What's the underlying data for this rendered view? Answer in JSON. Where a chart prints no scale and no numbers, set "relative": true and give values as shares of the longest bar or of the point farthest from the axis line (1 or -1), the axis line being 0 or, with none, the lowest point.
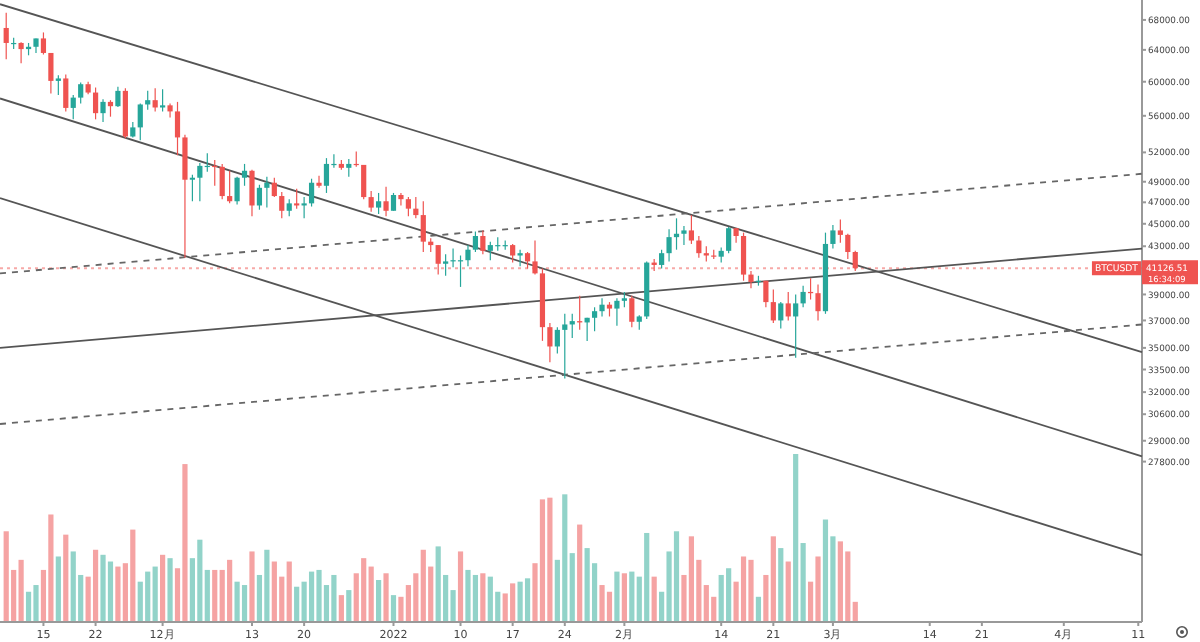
{
  "chart_data": [
    {
      "type": "candlestick",
      "log": "y",
      "x": [
        "2021-11-10",
        "2021-11-11",
        "2021-11-12",
        "2021-11-13",
        "2021-11-14",
        "2021-11-15",
        "2021-11-16",
        "2021-11-17",
        "2021-11-18",
        "2021-11-19",
        "2021-11-20",
        "2021-11-21",
        "2021-11-22",
        "2021-11-23",
        "2021-11-24",
        "2021-11-25",
        "2021-11-26",
        "2021-11-27",
        "2021-11-28",
        "2021-11-29",
        "2021-11-30",
        "2021-12-01",
        "2021-12-02",
        "2021-12-03",
        "2021-12-04",
        "2021-12-05",
        "2021-12-06",
        "2021-12-07",
        "2021-12-08",
        "2021-12-09",
        "2021-12-10",
        "2021-12-11",
        "2021-12-12",
        "2021-12-13",
        "2021-12-14",
        "2021-12-15",
        "2021-12-16",
        "2021-12-17",
        "2021-12-18",
        "2021-12-19",
        "2021-12-20",
        "2021-12-21",
        "2021-12-22",
        "2021-12-23",
        "2021-12-24",
        "2021-12-25",
        "2021-12-26",
        "2021-12-27",
        "2021-12-28",
        "2021-12-29",
        "2021-12-30",
        "2021-12-31",
        "2022-01-01",
        "2022-01-02",
        "2022-01-03",
        "2022-01-04",
        "2022-01-05",
        "2022-01-06",
        "2022-01-07",
        "2022-01-08",
        "2022-01-09",
        "2022-01-10",
        "2022-01-11",
        "2022-01-12",
        "2022-01-13",
        "2022-01-14",
        "2022-01-15",
        "2022-01-16",
        "2022-01-17",
        "2022-01-18",
        "2022-01-19",
        "2022-01-20",
        "2022-01-21",
        "2022-01-22",
        "2022-01-23",
        "2022-01-24",
        "2022-01-25",
        "2022-01-26",
        "2022-01-27",
        "2022-01-28",
        "2022-01-29",
        "2022-01-30",
        "2022-01-31",
        "2022-02-01",
        "2022-02-02",
        "2022-02-03",
        "2022-02-04",
        "2022-02-05",
        "2022-02-06",
        "2022-02-07",
        "2022-02-08",
        "2022-02-09",
        "2022-02-10",
        "2022-02-11",
        "2022-02-12",
        "2022-02-13",
        "2022-02-14",
        "2022-02-15",
        "2022-02-16",
        "2022-02-17",
        "2022-02-18",
        "2022-02-19",
        "2022-02-20",
        "2022-02-21",
        "2022-02-22",
        "2022-02-23",
        "2022-02-24",
        "2022-02-25",
        "2022-02-26",
        "2022-02-27",
        "2022-02-28",
        "2022-03-01",
        "2022-03-02",
        "2022-03-03",
        "2022-03-04"
      ],
      "ohlc": [
        [
          66900,
          69000,
          62800,
          64900
        ],
        [
          64900,
          65600,
          64100,
          64900
        ],
        [
          64900,
          65000,
          62300,
          64100
        ],
        [
          64100,
          64900,
          63300,
          64400
        ],
        [
          64400,
          65500,
          63600,
          65500
        ],
        [
          65500,
          66300,
          63400,
          63600
        ],
        [
          63600,
          63600,
          58600,
          60100
        ],
        [
          60100,
          60800,
          58400,
          60400
        ],
        [
          60400,
          60900,
          56500,
          56900
        ],
        [
          56900,
          58400,
          55600,
          58100
        ],
        [
          58100,
          59900,
          57400,
          59700
        ],
        [
          59700,
          60000,
          58500,
          58700
        ],
        [
          58700,
          59300,
          55600,
          56300
        ],
        [
          56300,
          57900,
          55300,
          57600
        ],
        [
          57600,
          57800,
          55900,
          57100
        ],
        [
          57100,
          59400,
          57000,
          58900
        ],
        [
          58900,
          59200,
          53500,
          53700
        ],
        [
          53700,
          55300,
          53600,
          54700
        ],
        [
          54700,
          57400,
          53300,
          57300
        ],
        [
          57300,
          58900,
          56700,
          57800
        ],
        [
          57800,
          59200,
          56500,
          56950
        ],
        [
          56950,
          59100,
          56500,
          57200
        ],
        [
          57200,
          57400,
          55800,
          56500
        ],
        [
          56500,
          57600,
          51700,
          53600
        ],
        [
          53600,
          53900,
          42000,
          49200
        ],
        [
          49200,
          49700,
          47100,
          49400
        ],
        [
          49400,
          50900,
          47100,
          50600
        ],
        [
          50600,
          51900,
          50000,
          50600
        ],
        [
          50600,
          51200,
          48600,
          50500
        ],
        [
          50500,
          50800,
          47300,
          47600
        ],
        [
          47600,
          50100,
          46900,
          47100
        ],
        [
          47100,
          49500,
          46800,
          49400
        ],
        [
          49400,
          50800,
          48600,
          50100
        ],
        [
          50100,
          50200,
          45700,
          46700
        ],
        [
          46700,
          48700,
          46300,
          48400
        ],
        [
          48400,
          49500,
          46500,
          48900
        ],
        [
          48900,
          49400,
          47500,
          47600
        ],
        [
          47600,
          48000,
          45500,
          46200
        ],
        [
          46200,
          47300,
          45700,
          46900
        ],
        [
          46900,
          48300,
          46400,
          46700
        ],
        [
          46700,
          47500,
          45500,
          46900
        ],
        [
          46900,
          49300,
          46600,
          48900
        ],
        [
          48900,
          49600,
          48400,
          48600
        ],
        [
          48600,
          51400,
          47900,
          50800
        ],
        [
          50800,
          51800,
          50400,
          50800
        ],
        [
          50800,
          51200,
          50200,
          50400
        ],
        [
          50400,
          51300,
          49500,
          50800
        ],
        [
          50800,
          52100,
          50500,
          50700
        ],
        [
          50700,
          50700,
          47300,
          47500
        ],
        [
          47500,
          48100,
          46100,
          46500
        ],
        [
          46500,
          47900,
          45900,
          47100
        ],
        [
          47100,
          48500,
          45700,
          46200
        ],
        [
          46200,
          47900,
          46200,
          47700
        ],
        [
          47700,
          47900,
          46700,
          47300
        ],
        [
          47300,
          47500,
          45700,
          46400
        ],
        [
          46400,
          47500,
          45500,
          45800
        ],
        [
          45800,
          47100,
          42500,
          43400
        ],
        [
          43400,
          43700,
          42500,
          43100
        ],
        [
          43100,
          43100,
          40600,
          41500
        ],
        [
          41500,
          42300,
          40500,
          41700
        ],
        [
          41700,
          42800,
          41200,
          41800
        ],
        [
          41800,
          42200,
          39600,
          41800
        ],
        [
          41800,
          43100,
          41300,
          42700
        ],
        [
          42700,
          44300,
          42500,
          43900
        ],
        [
          43900,
          44400,
          42300,
          42600
        ],
        [
          42600,
          43400,
          41800,
          43100
        ],
        [
          43100,
          43800,
          42600,
          43100
        ],
        [
          43100,
          43500,
          42700,
          43100
        ],
        [
          43100,
          43200,
          41600,
          42200
        ],
        [
          42200,
          42700,
          41300,
          42400
        ],
        [
          42400,
          42500,
          41100,
          41700
        ],
        [
          41700,
          43500,
          40600,
          40700
        ],
        [
          40700,
          41100,
          35500,
          36500
        ],
        [
          36500,
          36800,
          34000,
          35100
        ],
        [
          35100,
          36500,
          34600,
          36300
        ],
        [
          36300,
          37500,
          32900,
          36700
        ],
        [
          36700,
          37500,
          35700,
          36950
        ],
        [
          36950,
          38900,
          36300,
          36850
        ],
        [
          36850,
          37200,
          35500,
          37200
        ],
        [
          37200,
          38000,
          36200,
          37700
        ],
        [
          37700,
          38700,
          37300,
          38200
        ],
        [
          38200,
          38400,
          37300,
          37900
        ],
        [
          37900,
          38700,
          36600,
          38500
        ],
        [
          38500,
          39200,
          38000,
          38700
        ],
        [
          38700,
          38900,
          36500,
          36900
        ],
        [
          36900,
          37400,
          36300,
          37300
        ],
        [
          37300,
          41700,
          37100,
          41600
        ],
        [
          41600,
          41900,
          40900,
          41400
        ],
        [
          41400,
          42700,
          41100,
          42400
        ],
        [
          42400,
          44500,
          41700,
          43800
        ],
        [
          43800,
          45500,
          42700,
          44100
        ],
        [
          44100,
          44800,
          43100,
          44400
        ],
        [
          44400,
          45800,
          43200,
          43500
        ],
        [
          43500,
          43900,
          42000,
          42400
        ],
        [
          42400,
          43000,
          41700,
          42200
        ],
        [
          42200,
          42700,
          41900,
          42100
        ],
        [
          42100,
          42900,
          41600,
          42600
        ],
        [
          42600,
          44700,
          42400,
          44600
        ],
        [
          44600,
          44600,
          43300,
          43900
        ],
        [
          43900,
          44200,
          40100,
          40600
        ],
        [
          40600,
          40900,
          39500,
          40000
        ],
        [
          40000,
          40500,
          39700,
          40100
        ],
        [
          40100,
          40100,
          38000,
          38400
        ],
        [
          38400,
          39400,
          36800,
          37000
        ],
        [
          37000,
          38400,
          36400,
          38300
        ],
        [
          38300,
          39200,
          37000,
          37300
        ],
        [
          37300,
          39000,
          34300,
          38300
        ],
        [
          38300,
          39700,
          38000,
          39200
        ],
        [
          39200,
          40300,
          38600,
          39100
        ],
        [
          39100,
          39800,
          37000,
          37700
        ],
        [
          37700,
          44200,
          37500,
          43200
        ],
        [
          43200,
          44900,
          42800,
          44400
        ],
        [
          44400,
          45400,
          43300,
          44000
        ],
        [
          44000,
          44100,
          41900,
          42500
        ],
        [
          42500,
          42600,
          40900,
          41126.51
        ]
      ],
      "series": [
        {
          "type": "line",
          "x": [
            "2021-11-09T04:00",
            "2022-04-11T12:00"
          ],
          "values": [
            70200,
            34700
          ],
          "color": "#555555",
          "line_style": "solid"
        },
        {
          "type": "line",
          "x": [
            "2021-11-09T04:00",
            "2022-04-11T12:00"
          ],
          "values": [
            58000,
            28100
          ],
          "color": "#555555",
          "line_style": "solid"
        },
        {
          "type": "line",
          "x": [
            "2021-11-09T04:00",
            "2022-04-11T12:00"
          ],
          "values": [
            47400,
            23000
          ],
          "color": "#555555",
          "line_style": "solid"
        },
        {
          "type": "line",
          "x": [
            "2021-11-09T04:00",
            "2022-04-11T12:00"
          ],
          "values": [
            35000,
            42800
          ],
          "color": "#555555",
          "line_style": "solid"
        },
        {
          "type": "line",
          "x": [
            "2021-11-09T04:00",
            "2022-04-11T12:00"
          ],
          "values": [
            40700,
            49800
          ],
          "color": "#666666",
          "line_style": "dashed"
        },
        {
          "type": "line",
          "x": [
            "2021-11-09T04:00",
            "2022-04-11T12:00"
          ],
          "values": [
            30000,
            36700
          ],
          "color": "#666666",
          "line_style": "dashed"
        }
      ],
      "xlim": [
        "2021-11-09T04:00",
        "2022-04-11T12:00"
      ],
      "xticks": [
        {
          "value": "2021-11-15",
          "label": "15"
        },
        {
          "value": "2021-11-22",
          "label": "22"
        },
        {
          "value": "2021-12-01",
          "label": "12月"
        },
        {
          "value": "2021-12-13",
          "label": "13"
        },
        {
          "value": "2021-12-20",
          "label": "20"
        },
        {
          "value": "2022-01-01",
          "label": "2022"
        },
        {
          "value": "2022-01-10",
          "label": "10"
        },
        {
          "value": "2022-01-17",
          "label": "17"
        },
        {
          "value": "2022-01-24",
          "label": "24"
        },
        {
          "value": "2022-02-01",
          "label": "2月"
        },
        {
          "value": "2022-02-14",
          "label": "14"
        },
        {
          "value": "2022-02-21",
          "label": "21"
        },
        {
          "value": "2022-03-01",
          "label": "3月"
        },
        {
          "value": "2022-03-14",
          "label": "14"
        },
        {
          "value": "2022-03-21",
          "label": "21"
        },
        {
          "value": "2022-04-01",
          "label": "4月"
        },
        {
          "value": "2022-04-11",
          "label": "11"
        }
      ],
      "ylim": [
        20090,
        70800
      ],
      "yticks": [
        {
          "value": 68000,
          "label": "68000.00"
        },
        {
          "value": 64000,
          "label": "64000.00"
        },
        {
          "value": 60000,
          "label": "60000.00"
        },
        {
          "value": 56000,
          "label": "56000.00"
        },
        {
          "value": 52000,
          "label": "52000.00"
        },
        {
          "value": 49000,
          "label": "49000.00"
        },
        {
          "value": 47000,
          "label": "47000.00"
        },
        {
          "value": 45000,
          "label": "45000.00"
        },
        {
          "value": 43000,
          "label": "43000.00"
        },
        {
          "value": 39000,
          "label": "39000.00"
        },
        {
          "value": 37000,
          "label": "37000.00"
        },
        {
          "value": 35000,
          "label": "35000.00"
        },
        {
          "value": 33500,
          "label": "33500.00"
        },
        {
          "value": 32000,
          "label": "32000.00"
        },
        {
          "value": 30600,
          "label": "30600.00"
        },
        {
          "value": 29000,
          "label": "29000.00"
        },
        {
          "value": 27800,
          "label": "27800.00"
        }
      ],
      "ref_lines": [
        {
          "axis": "y",
          "value": 41126.51,
          "label": "41126.51",
          "color": "#ef5350",
          "line_style": "dotted"
        }
      ],
      "annotations": [
        "BTCUSDT",
        "16:34:09"
      ]
    },
    {
      "type": "bar",
      "relative": true,
      "xlim": [
        "2021-11-09T04:00",
        "2022-04-11T12:00"
      ],
      "x": [
        "2021-11-10",
        "2021-11-11",
        "2021-11-12",
        "2021-11-13",
        "2021-11-14",
        "2021-11-15",
        "2021-11-16",
        "2021-11-17",
        "2021-11-18",
        "2021-11-19",
        "2021-11-20",
        "2021-11-21",
        "2021-11-22",
        "2021-11-23",
        "2021-11-24",
        "2021-11-25",
        "2021-11-26",
        "2021-11-27",
        "2021-11-28",
        "2021-11-29",
        "2021-11-30",
        "2021-12-01",
        "2021-12-02",
        "2021-12-03",
        "2021-12-04",
        "2021-12-05",
        "2021-12-06",
        "2021-12-07",
        "2021-12-08",
        "2021-12-09",
        "2021-12-10",
        "2021-12-11",
        "2021-12-12",
        "2021-12-13",
        "2021-12-14",
        "2021-12-15",
        "2021-12-16",
        "2021-12-17",
        "2021-12-18",
        "2021-12-19",
        "2021-12-20",
        "2021-12-21",
        "2021-12-22",
        "2021-12-23",
        "2021-12-24",
        "2021-12-25",
        "2021-12-26",
        "2021-12-27",
        "2021-12-28",
        "2021-12-29",
        "2021-12-30",
        "2021-12-31",
        "2022-01-01",
        "2022-01-02",
        "2022-01-03",
        "2022-01-04",
        "2022-01-05",
        "2022-01-06",
        "2022-01-07",
        "2022-01-08",
        "2022-01-09",
        "2022-01-10",
        "2022-01-11",
        "2022-01-12",
        "2022-01-13",
        "2022-01-14",
        "2022-01-15",
        "2022-01-16",
        "2022-01-17",
        "2022-01-18",
        "2022-01-19",
        "2022-01-20",
        "2022-01-21",
        "2022-01-22",
        "2022-01-23",
        "2022-01-24",
        "2022-01-25",
        "2022-01-26",
        "2022-01-27",
        "2022-01-28",
        "2022-01-29",
        "2022-01-30",
        "2022-01-31",
        "2022-02-01",
        "2022-02-02",
        "2022-02-03",
        "2022-02-04",
        "2022-02-05",
        "2022-02-06",
        "2022-02-07",
        "2022-02-08",
        "2022-02-09",
        "2022-02-10",
        "2022-02-11",
        "2022-02-12",
        "2022-02-13",
        "2022-02-14",
        "2022-02-15",
        "2022-02-16",
        "2022-02-17",
        "2022-02-18",
        "2022-02-19",
        "2022-02-20",
        "2022-02-21",
        "2022-02-22",
        "2022-02-23",
        "2022-02-24",
        "2022-02-25",
        "2022-02-26",
        "2022-02-27",
        "2022-02-28",
        "2022-03-01",
        "2022-03-02",
        "2022-03-03",
        "2022-03-04"
      ],
      "values": [
        0.54,
        0.31,
        0.37,
        0.18,
        0.22,
        0.31,
        0.64,
        0.39,
        0.52,
        0.42,
        0.28,
        0.27,
        0.43,
        0.4,
        0.36,
        0.33,
        0.35,
        0.55,
        0.24,
        0.3,
        0.33,
        0.4,
        0.38,
        0.32,
        0.94,
        0.38,
        0.49,
        0.31,
        0.31,
        0.31,
        0.37,
        0.24,
        0.22,
        0.42,
        0.28,
        0.43,
        0.36,
        0.27,
        0.36,
        0.21,
        0.24,
        0.3,
        0.31,
        0.22,
        0.28,
        0.16,
        0.19,
        0.29,
        0.38,
        0.33,
        0.25,
        0.29,
        0.16,
        0.15,
        0.22,
        0.29,
        0.43,
        0.33,
        0.45,
        0.28,
        0.19,
        0.42,
        0.31,
        0.28,
        0.29,
        0.27,
        0.18,
        0.17,
        0.23,
        0.24,
        0.26,
        0.35,
        0.73,
        0.74,
        0.37,
        0.76,
        0.41,
        0.58,
        0.44,
        0.35,
        0.22,
        0.18,
        0.3,
        0.29,
        0.3,
        0.27,
        0.53,
        0.27,
        0.18,
        0.42,
        0.54,
        0.28,
        0.51,
        0.37,
        0.22,
        0.15,
        0.28,
        0.32,
        0.24,
        0.39,
        0.37,
        0.15,
        0.28,
        0.51,
        0.44,
        0.36,
        1,
        0.47,
        0.24,
        0.39,
        0.61,
        0.51,
        0.48,
        0.42,
        0.12
      ],
      "colors": [
        "#f5a3a3",
        "#f5a3a3",
        "#f5a3a3",
        "#92d3c9",
        "#92d3c9",
        "#f5a3a3",
        "#f5a3a3",
        "#92d3c9",
        "#f5a3a3",
        "#92d3c9",
        "#92d3c9",
        "#f5a3a3",
        "#f5a3a3",
        "#92d3c9",
        "#92d3c9",
        "#f5a3a3",
        "#f5a3a3",
        "#f5a3a3",
        "#92d3c9",
        "#92d3c9",
        "#92d3c9",
        "#f5a3a3",
        "#92d3c9",
        "#f5a3a3",
        "#f5a3a3",
        "#92d3c9",
        "#92d3c9",
        "#92d3c9",
        "#f5a3a3",
        "#f5a3a3",
        "#f5a3a3",
        "#92d3c9",
        "#92d3c9",
        "#f5a3a3",
        "#92d3c9",
        "#92d3c9",
        "#f5a3a3",
        "#f5a3a3",
        "#f5a3a3",
        "#92d3c9",
        "#92d3c9",
        "#92d3c9",
        "#92d3c9",
        "#92d3c9",
        "#92d3c9",
        "#f5a3a3",
        "#92d3c9",
        "#f5a3a3",
        "#f5a3a3",
        "#f5a3a3",
        "#92d3c9",
        "#f5a3a3",
        "#92d3c9",
        "#f5a3a3",
        "#f5a3a3",
        "#f5a3a3",
        "#f5a3a3",
        "#f5a3a3",
        "#92d3c9",
        "#92d3c9",
        "#92d3c9",
        "#f5a3a3",
        "#92d3c9",
        "#92d3c9",
        "#f5a3a3",
        "#92d3c9",
        "#92d3c9",
        "#f5a3a3",
        "#f5a3a3",
        "#92d3c9",
        "#92d3c9",
        "#f5a3a3",
        "#f5a3a3",
        "#f5a3a3",
        "#92d3c9",
        "#92d3c9",
        "#92d3c9",
        "#f5a3a3",
        "#92d3c9",
        "#92d3c9",
        "#f5a3a3",
        "#f5a3a3",
        "#92d3c9",
        "#f5a3a3",
        "#92d3c9",
        "#92d3c9",
        "#92d3c9",
        "#f5a3a3",
        "#92d3c9",
        "#92d3c9",
        "#92d3c9",
        "#f5a3a3",
        "#f5a3a3",
        "#f5a3a3",
        "#f5a3a3",
        "#f5a3a3",
        "#92d3c9",
        "#92d3c9",
        "#f5a3a3",
        "#f5a3a3",
        "#f5a3a3",
        "#92d3c9",
        "#f5a3a3",
        "#f5a3a3",
        "#92d3c9",
        "#f5a3a3",
        "#92d3c9",
        "#92d3c9",
        "#f5a3a3",
        "#f5a3a3",
        "#92d3c9",
        "#92d3c9",
        "#f5a3a3",
        "#f5a3a3",
        "#f5a3a3"
      ]
    }
  ]
}
